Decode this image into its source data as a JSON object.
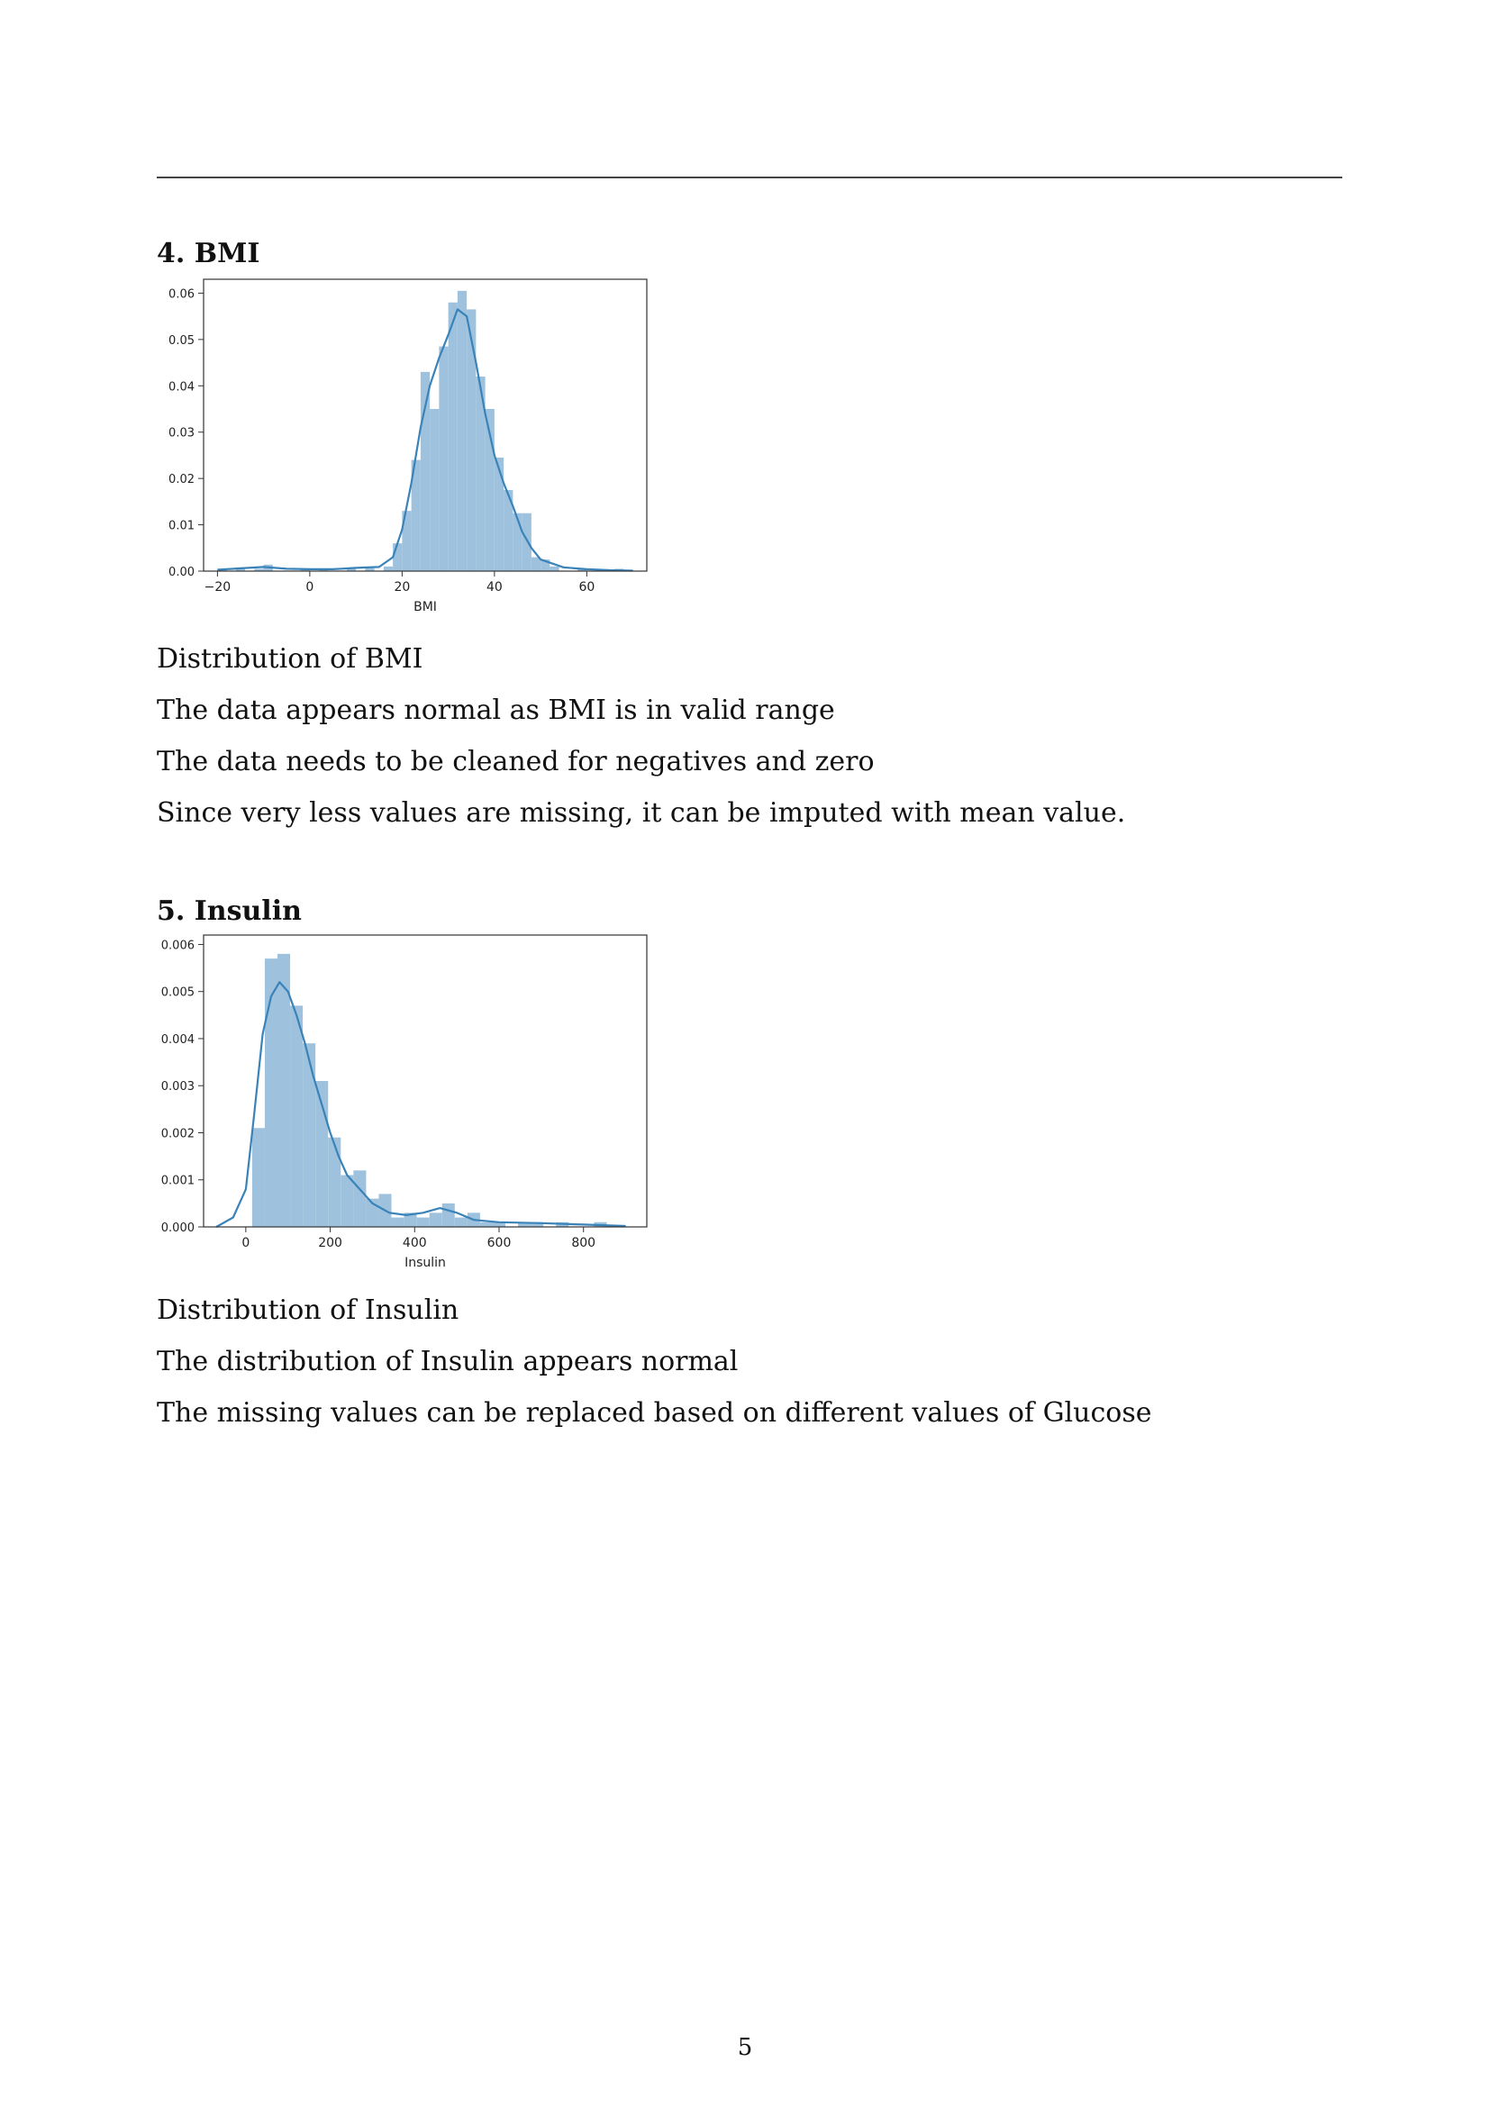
{
  "sections": [
    {
      "heading": "4. BMI",
      "lines": [
        "Distribution of BMI",
        "The data appears normal as BMI is in valid range",
        "The data needs to be cleaned for negatives and zero",
        "Since very less values are missing, it can be imputed with mean value."
      ]
    },
    {
      "heading": "5. Insulin",
      "lines": [
        "Distribution of Insulin",
        "The distribution of Insulin appears normal",
        "The missing values can be replaced based on different values of Glucose"
      ]
    }
  ],
  "page_number": "5",
  "chart_data": [
    {
      "type": "bar",
      "subtype": "histogram_with_kde",
      "xlabel": "BMI",
      "ylabel": "",
      "xlim": [
        -23,
        73
      ],
      "ylim": [
        0,
        0.063
      ],
      "xticks": [
        -20,
        0,
        20,
        40,
        60
      ],
      "xtick_labels": [
        "−20",
        "0",
        "20",
        "40",
        "60"
      ],
      "yticks": [
        0,
        0.01,
        0.02,
        0.03,
        0.04,
        0.05,
        0.06
      ],
      "ytick_labels": [
        "0.00",
        "0.01",
        "0.02",
        "0.03",
        "0.04",
        "0.05",
        "0.06"
      ],
      "bar_color": "#9ec2de",
      "line_color": "#3a83b9",
      "bins": [
        {
          "x0": -20,
          "x1": -18,
          "y": 0.0005
        },
        {
          "x0": -16,
          "x1": -14,
          "y": 0.0008
        },
        {
          "x0": -12,
          "x1": -10,
          "y": 0.0005
        },
        {
          "x0": -10,
          "x1": -8,
          "y": 0.0014
        },
        {
          "x0": -2,
          "x1": 0,
          "y": 0.0006
        },
        {
          "x0": 2,
          "x1": 4,
          "y": 0.0005
        },
        {
          "x0": 8,
          "x1": 10,
          "y": 0.0006
        },
        {
          "x0": 12,
          "x1": 14,
          "y": 0.0006
        },
        {
          "x0": 16,
          "x1": 18,
          "y": 0.001
        },
        {
          "x0": 18,
          "x1": 20,
          "y": 0.006
        },
        {
          "x0": 20,
          "x1": 22,
          "y": 0.013
        },
        {
          "x0": 22,
          "x1": 24,
          "y": 0.024
        },
        {
          "x0": 24,
          "x1": 26,
          "y": 0.043
        },
        {
          "x0": 26,
          "x1": 28,
          "y": 0.035
        },
        {
          "x0": 28,
          "x1": 30,
          "y": 0.0485
        },
        {
          "x0": 30,
          "x1": 32,
          "y": 0.058
        },
        {
          "x0": 32,
          "x1": 34,
          "y": 0.0605
        },
        {
          "x0": 34,
          "x1": 36,
          "y": 0.0565
        },
        {
          "x0": 36,
          "x1": 38,
          "y": 0.042
        },
        {
          "x0": 38,
          "x1": 40,
          "y": 0.035
        },
        {
          "x0": 40,
          "x1": 42,
          "y": 0.0245
        },
        {
          "x0": 42,
          "x1": 44,
          "y": 0.0175
        },
        {
          "x0": 44,
          "x1": 46,
          "y": 0.0125
        },
        {
          "x0": 46,
          "x1": 48,
          "y": 0.0125
        },
        {
          "x0": 48,
          "x1": 50,
          "y": 0.003
        },
        {
          "x0": 50,
          "x1": 52,
          "y": 0.0025
        },
        {
          "x0": 52,
          "x1": 54,
          "y": 0.001
        },
        {
          "x0": 58,
          "x1": 60,
          "y": 0.0005
        },
        {
          "x0": 66,
          "x1": 68,
          "y": 0.0005
        }
      ],
      "kde": {
        "x": [
          -20,
          -15,
          -10,
          -5,
          0,
          5,
          10,
          15,
          18,
          20,
          22,
          24,
          26,
          28,
          30,
          32,
          34,
          36,
          38,
          40,
          42,
          44,
          46,
          48,
          50,
          55,
          60,
          65,
          70
        ],
        "y": [
          0.0003,
          0.0006,
          0.0009,
          0.0005,
          0.0004,
          0.0004,
          0.0007,
          0.0009,
          0.003,
          0.009,
          0.019,
          0.031,
          0.04,
          0.046,
          0.051,
          0.0565,
          0.055,
          0.045,
          0.034,
          0.025,
          0.019,
          0.014,
          0.0085,
          0.005,
          0.0025,
          0.0008,
          0.0004,
          0.0002,
          0.0001
        ]
      }
    },
    {
      "type": "bar",
      "subtype": "histogram_with_kde",
      "xlabel": "Insulin",
      "ylabel": "",
      "xlim": [
        -100,
        950
      ],
      "ylim": [
        0,
        0.0062
      ],
      "xticks": [
        0,
        200,
        400,
        600,
        800
      ],
      "xtick_labels": [
        "0",
        "200",
        "400",
        "600",
        "800"
      ],
      "yticks": [
        0,
        0.001,
        0.002,
        0.003,
        0.004,
        0.005,
        0.006
      ],
      "ytick_labels": [
        "0.000",
        "0.001",
        "0.002",
        "0.003",
        "0.004",
        "0.005",
        "0.006"
      ],
      "bar_color": "#9ec2de",
      "line_color": "#3a83b9",
      "bins": [
        {
          "x0": 15,
          "x1": 45,
          "y": 0.0021
        },
        {
          "x0": 45,
          "x1": 75,
          "y": 0.0057
        },
        {
          "x0": 75,
          "x1": 105,
          "y": 0.0058
        },
        {
          "x0": 105,
          "x1": 135,
          "y": 0.0047
        },
        {
          "x0": 135,
          "x1": 165,
          "y": 0.0039
        },
        {
          "x0": 165,
          "x1": 195,
          "y": 0.0031
        },
        {
          "x0": 195,
          "x1": 225,
          "y": 0.0019
        },
        {
          "x0": 225,
          "x1": 255,
          "y": 0.0011
        },
        {
          "x0": 255,
          "x1": 285,
          "y": 0.0012
        },
        {
          "x0": 285,
          "x1": 315,
          "y": 0.0006
        },
        {
          "x0": 315,
          "x1": 345,
          "y": 0.0007
        },
        {
          "x0": 345,
          "x1": 375,
          "y": 0.0002
        },
        {
          "x0": 375,
          "x1": 405,
          "y": 0.0003
        },
        {
          "x0": 405,
          "x1": 435,
          "y": 0.0002
        },
        {
          "x0": 435,
          "x1": 465,
          "y": 0.0003
        },
        {
          "x0": 465,
          "x1": 495,
          "y": 0.0005
        },
        {
          "x0": 495,
          "x1": 525,
          "y": 0.0002
        },
        {
          "x0": 525,
          "x1": 555,
          "y": 0.0003
        },
        {
          "x0": 555,
          "x1": 585,
          "y": 0.0001
        },
        {
          "x0": 585,
          "x1": 615,
          "y": 0.0001
        },
        {
          "x0": 645,
          "x1": 675,
          "y": 0.0001
        },
        {
          "x0": 675,
          "x1": 705,
          "y": 0.0001
        },
        {
          "x0": 735,
          "x1": 765,
          "y": 0.0001
        },
        {
          "x0": 825,
          "x1": 855,
          "y": 0.0001
        }
      ],
      "kde": {
        "x": [
          -70,
          -30,
          0,
          20,
          40,
          60,
          80,
          100,
          120,
          140,
          160,
          180,
          200,
          220,
          240,
          260,
          280,
          300,
          340,
          380,
          420,
          460,
          480,
          500,
          540,
          600,
          700,
          800,
          900
        ],
        "y": [
          0,
          0.0002,
          0.0008,
          0.0024,
          0.0041,
          0.0049,
          0.0052,
          0.005,
          0.0045,
          0.0039,
          0.0032,
          0.0026,
          0.002,
          0.0015,
          0.0011,
          0.0009,
          0.0007,
          0.0005,
          0.0003,
          0.00025,
          0.0003,
          0.0004,
          0.00035,
          0.0003,
          0.00015,
          0.0001,
          8e-05,
          5e-05,
          2e-05
        ]
      }
    }
  ]
}
